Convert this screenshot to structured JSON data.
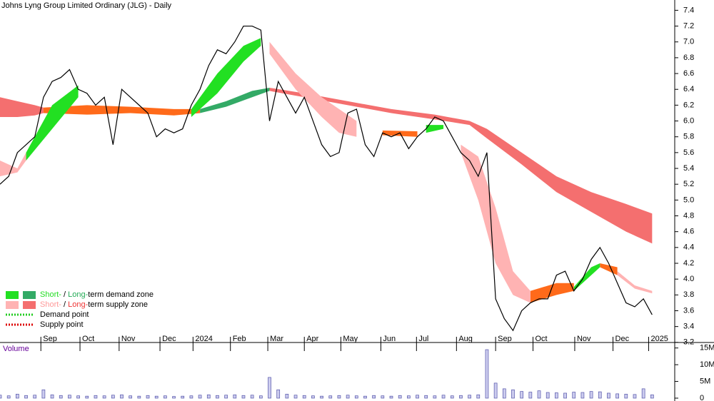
{
  "chart_data": {
    "type": "stock",
    "title": "Johns Lyng Group Limited Ordinary (JLG) - Daily",
    "xlim": [
      0,
      77.6
    ],
    "xticks": [
      {
        "value": 4.7,
        "label": "Sep"
      },
      {
        "value": 9.2,
        "label": "Oct"
      },
      {
        "value": 13.7,
        "label": "Nov"
      },
      {
        "value": 18.4,
        "label": "Dec"
      },
      {
        "value": 22.2,
        "label": "2024"
      },
      {
        "value": 26.5,
        "label": "Feb"
      },
      {
        "value": 30.8,
        "label": "Mar"
      },
      {
        "value": 35,
        "label": "Apr"
      },
      {
        "value": 39.2,
        "label": "May"
      },
      {
        "value": 43.8,
        "label": "Jun"
      },
      {
        "value": 47.9,
        "label": "Jul"
      },
      {
        "value": 52.5,
        "label": "Aug"
      },
      {
        "value": 57,
        "label": "Sep"
      },
      {
        "value": 61.3,
        "label": "Oct"
      },
      {
        "value": 66.1,
        "label": "Nov"
      },
      {
        "value": 70.5,
        "label": "Dec"
      },
      {
        "value": 74.6,
        "label": "2025"
      }
    ],
    "ylim": [
      3.09,
      7.53
    ],
    "yticks": [
      3.2,
      3.4,
      3.6,
      3.8,
      {
        "value": 4,
        "label": "4.0"
      },
      4.2,
      4.4,
      4.6,
      4.8,
      {
        "value": 5,
        "label": "5.0"
      },
      5.2,
      5.4,
      5.6,
      5.8,
      {
        "value": 6,
        "label": "6.0"
      },
      6.2,
      6.4,
      6.6,
      6.8,
      {
        "value": 7,
        "label": "7.0"
      },
      7.2,
      7.4
    ],
    "price": {
      "color": "#000000",
      "values": [
        5.2,
        5.3,
        5.6,
        5.7,
        5.8,
        6.3,
        6.5,
        6.55,
        6.65,
        6.4,
        6.35,
        6.2,
        6.3,
        5.7,
        6.4,
        6.3,
        6.2,
        6.1,
        5.8,
        5.9,
        5.85,
        5.9,
        6.2,
        6.4,
        6.7,
        6.9,
        6.85,
        7.0,
        7.2,
        7.2,
        7.15,
        6.0,
        6.5,
        6.3,
        6.1,
        6.3,
        6.0,
        5.7,
        5.55,
        5.6,
        6.1,
        6.15,
        5.7,
        5.55,
        5.85,
        5.8,
        5.85,
        5.65,
        5.8,
        5.9,
        6.05,
        6.0,
        5.8,
        5.6,
        5.5,
        5.3,
        5.6,
        3.75,
        3.5,
        3.35,
        3.6,
        3.7,
        3.75,
        3.75,
        4.05,
        4.1,
        3.85,
        4.0,
        4.25,
        4.4,
        4.2,
        3.95,
        3.7,
        3.65,
        3.75,
        3.55
      ]
    },
    "zones": [
      {
        "color": "#f46f6f",
        "x": [
          0,
          2,
          4,
          5,
          null,
          31,
          35,
          40,
          45,
          50,
          54,
          56,
          60,
          64,
          68,
          72,
          75
        ],
        "upper": [
          6.3,
          6.25,
          6.2,
          6.17,
          null,
          6.42,
          6.35,
          6.25,
          6.15,
          6.08,
          6.0,
          5.9,
          5.6,
          5.3,
          5.1,
          4.95,
          4.83
        ],
        "lower": [
          6.05,
          6.05,
          6.07,
          6.1,
          null,
          6.38,
          6.3,
          6.2,
          6.1,
          6.02,
          5.95,
          5.78,
          5.45,
          5.1,
          4.85,
          4.6,
          4.45
        ]
      },
      {
        "color": "#33aa66",
        "x": [
          23,
          26,
          29,
          31
        ],
        "upper": [
          6.15,
          6.25,
          6.38,
          6.42
        ],
        "lower": [
          6.1,
          6.18,
          6.3,
          6.38
        ]
      },
      {
        "color": "#ff6a1a",
        "x": [
          5,
          10,
          15,
          20,
          23,
          null,
          44,
          48,
          null,
          61,
          64,
          66,
          null,
          69,
          71
        ],
        "upper": [
          6.17,
          6.2,
          6.18,
          6.15,
          6.15,
          null,
          5.88,
          5.87,
          null,
          3.85,
          3.95,
          3.95,
          null,
          4.2,
          4.15
        ],
        "lower": [
          6.1,
          6.08,
          6.1,
          6.07,
          6.1,
          null,
          5.82,
          5.8,
          null,
          3.7,
          3.8,
          3.85,
          null,
          4.15,
          4.05
        ]
      },
      {
        "color": "#22e022",
        "x": [
          3,
          6,
          9,
          null,
          22,
          25,
          28,
          30,
          null,
          49,
          51,
          null,
          66,
          68,
          69
        ],
        "upper": [
          5.6,
          6.2,
          6.45,
          null,
          6.15,
          6.6,
          6.95,
          7.05,
          null,
          5.95,
          5.95,
          null,
          3.9,
          4.15,
          4.2
        ],
        "lower": [
          5.5,
          5.9,
          6.3,
          null,
          6.05,
          6.35,
          6.75,
          6.95,
          null,
          5.85,
          5.9,
          null,
          3.85,
          4.05,
          4.15
        ]
      },
      {
        "color": "#ffb3b3",
        "x": [
          0,
          2,
          3,
          null,
          31,
          34,
          37,
          39,
          41,
          null,
          53,
          55,
          57,
          59,
          61,
          null,
          71,
          73,
          75
        ],
        "upper": [
          5.5,
          5.4,
          5.6,
          null,
          7.0,
          6.6,
          6.3,
          6.15,
          6.0,
          null,
          5.7,
          5.55,
          4.9,
          4.1,
          3.85,
          null,
          4.1,
          3.92,
          3.85
        ],
        "lower": [
          5.3,
          5.35,
          5.5,
          null,
          6.85,
          6.4,
          6.05,
          5.85,
          5.8,
          null,
          5.6,
          5.0,
          4.2,
          3.8,
          3.7,
          null,
          4.05,
          3.88,
          3.82
        ]
      }
    ],
    "legend": [
      {
        "parts": [
          {
            "text": "Short-",
            "color": "#22dd22"
          },
          {
            "text": " / ",
            "color": "#000000"
          },
          {
            "text": "Long-",
            "color": "#22aa55"
          },
          {
            "text": "term demand zone",
            "color": "#000000"
          }
        ],
        "swatches": [
          "#22e022",
          "#33aa66"
        ]
      },
      {
        "parts": [
          {
            "text": "Short-",
            "color": "#ff9999"
          },
          {
            "text": " / ",
            "color": "#000000"
          },
          {
            "text": "Long-",
            "color": "#ee3333"
          },
          {
            "text": "term supply zone",
            "color": "#000000"
          }
        ],
        "swatches": [
          "#ffb3b3",
          "#f46f6f"
        ]
      },
      {
        "parts": [
          {
            "text": "Demand point",
            "color": "#000000"
          }
        ],
        "dots": "#22cc22"
      },
      {
        "parts": [
          {
            "text": "Supply point",
            "color": "#000000"
          }
        ],
        "dots": "#dd0000"
      }
    ],
    "volume": {
      "label": "Volume",
      "color": "#5555aa",
      "ylim": [
        0,
        16000000
      ],
      "yticks": [
        {
          "value": 0,
          "label": "0"
        },
        {
          "value": 5000000,
          "label": "5M"
        },
        {
          "value": 10000000,
          "label": "10M"
        },
        {
          "value": 15000000,
          "label": "15M"
        }
      ],
      "values": [
        900000,
        700000,
        1200000,
        800000,
        900000,
        2500000,
        1000000,
        800000,
        900000,
        700000,
        600000,
        800000,
        700000,
        900000,
        1000000,
        700000,
        600000,
        800000,
        600000,
        700000,
        500000,
        600000,
        700000,
        900000,
        1000000,
        800000,
        900000,
        1000000,
        800000,
        900000,
        700000,
        6200000,
        2500000,
        1200000,
        900000,
        800000,
        700000,
        600000,
        700000,
        800000,
        900000,
        700000,
        600000,
        800000,
        700000,
        600000,
        800000,
        700000,
        900000,
        800000,
        700000,
        900000,
        700000,
        800000,
        900000,
        1000000,
        14500000,
        4500000,
        2800000,
        2500000,
        2000000,
        1800000,
        2200000,
        1700000,
        1600000,
        1500000,
        1800000,
        1700000,
        2000000,
        1900000,
        1500000,
        1300000,
        1200000,
        1100000,
        2800000,
        1000000
      ]
    }
  }
}
